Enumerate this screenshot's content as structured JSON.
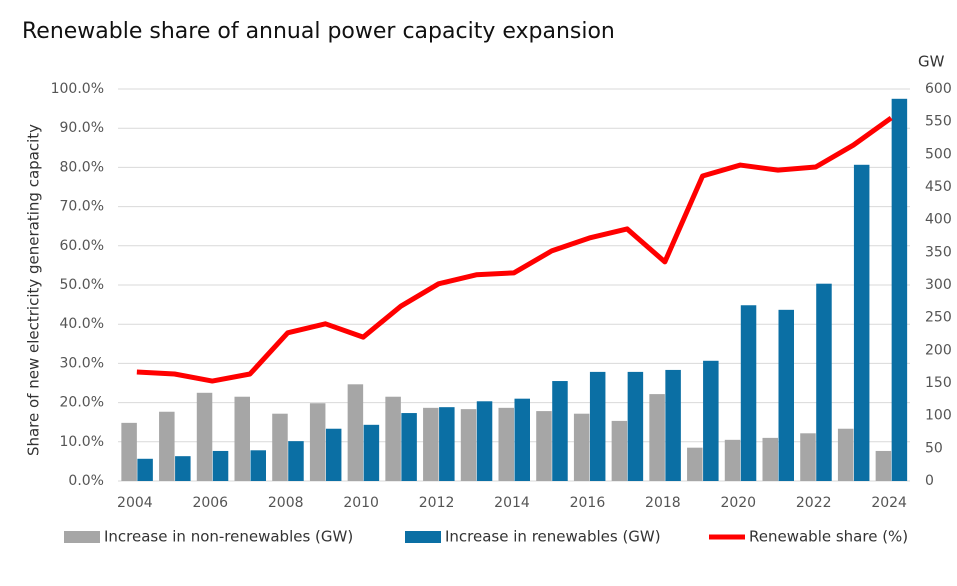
{
  "chart_data": {
    "type": "bar_line",
    "title": "Renewable share of annual power capacity expansion",
    "y_label": "Share of new electricity generating capacity",
    "y2_label": "GW",
    "categories": [
      "2004",
      null,
      "2006",
      null,
      "2008",
      null,
      "2010",
      null,
      "2012",
      null,
      "2014",
      null,
      "2016",
      null,
      "2018",
      null,
      "2020",
      null,
      "2022",
      null,
      "2024"
    ],
    "series": [
      {
        "name": "Increase in non-renewables (GW)",
        "type": "bar",
        "axis": "y2",
        "color": "#a6a6a6",
        "values": [
          89,
          106,
          135,
          129,
          103,
          119,
          148,
          129,
          112,
          110,
          112,
          107,
          103,
          92,
          133,
          51,
          63,
          66,
          73,
          80,
          46
        ]
      },
      {
        "name": "Increase in renewables (GW)",
        "type": "bar",
        "axis": "y2",
        "color": "#0b6fa4",
        "values": [
          34,
          38,
          46,
          47,
          61,
          80,
          86,
          104,
          113,
          122,
          126,
          153,
          167,
          167,
          170,
          184,
          269,
          262,
          302,
          484,
          585
        ]
      },
      {
        "name": "Renewable share (%)",
        "type": "line",
        "color": "#ff0000",
        "values": [
          27.8,
          27.3,
          25.5,
          27.3,
          37.8,
          40.1,
          36.7,
          44.6,
          50.3,
          52.6,
          53.1,
          58.7,
          62.0,
          64.3,
          55.9,
          77.8,
          80.6,
          79.3,
          80.1,
          85.7,
          92.6
        ]
      }
    ],
    "ylim": [
      0,
      100
    ],
    "yticks": [
      {
        "value": 0,
        "label": "0.0%"
      },
      {
        "value": 10,
        "label": "10.0%"
      },
      {
        "value": 20,
        "label": "20.0%"
      },
      {
        "value": 30,
        "label": "30.0%"
      },
      {
        "value": 40,
        "label": "40.0%"
      },
      {
        "value": 50,
        "label": "50.0%"
      },
      {
        "value": 60,
        "label": "60.0%"
      },
      {
        "value": 70,
        "label": "70.0%"
      },
      {
        "value": 80,
        "label": "80.0%"
      },
      {
        "value": 90,
        "label": "90.0%"
      },
      {
        "value": 100,
        "label": "100.0%"
      }
    ],
    "y2lim": [
      0,
      600
    ],
    "y2ticks": [
      0,
      50,
      100,
      150,
      200,
      250,
      300,
      350,
      400,
      450,
      500,
      550,
      600
    ],
    "grid": true,
    "legend": "bottom"
  }
}
